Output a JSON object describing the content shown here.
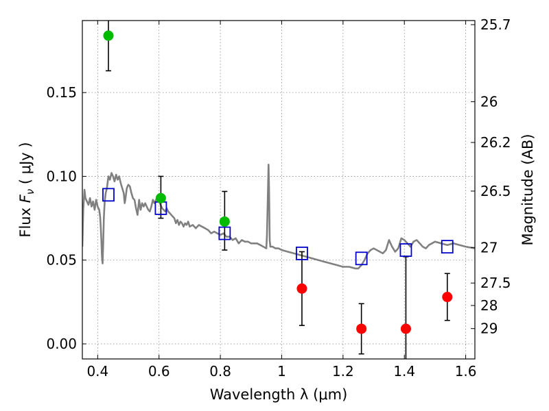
{
  "chart_data": {
    "type": "scatter",
    "title": "",
    "xlabel": "Wavelength  λ (μm)",
    "ylabel": "Flux  F_ν  ( μJy )",
    "ylabel_right": "Magnitude (AB)",
    "xlim": [
      0.35,
      1.63
    ],
    "ylim": [
      -0.009,
      0.193
    ],
    "grid": true,
    "x_ticks": [
      {
        "value": 0.4,
        "label": "0.4"
      },
      {
        "value": 0.6,
        "label": "0.6"
      },
      {
        "value": 0.8,
        "label": "0.8"
      },
      {
        "value": 1.0,
        "label": "1"
      },
      {
        "value": 1.2,
        "label": "1.2"
      },
      {
        "value": 1.4,
        "label": "1.4"
      },
      {
        "value": 1.6,
        "label": "1.6"
      }
    ],
    "y_ticks": [
      {
        "value": 0.0,
        "label": "0.00"
      },
      {
        "value": 0.05,
        "label": "0.05"
      },
      {
        "value": 0.1,
        "label": "0.10"
      },
      {
        "value": 0.15,
        "label": "0.15"
      }
    ],
    "right_ticks": [
      {
        "mag": 25.7,
        "label": "25.7"
      },
      {
        "mag": 26,
        "label": "26"
      },
      {
        "mag": 26.2,
        "label": "26.2"
      },
      {
        "mag": 26.5,
        "label": "26.5"
      },
      {
        "mag": 27,
        "label": "27"
      },
      {
        "mag": 27.5,
        "label": "27.5"
      },
      {
        "mag": 28,
        "label": "28"
      },
      {
        "mag": 29,
        "label": "29"
      }
    ],
    "colors": {
      "detection": "#00bb00",
      "upper": "#ff0000",
      "model_points": "#0000cc",
      "template": "#808080",
      "errorbar": "#000000",
      "grid": "#888888"
    },
    "series": [
      {
        "kind": "detections",
        "points": [
          {
            "x": 0.435,
            "y": 0.184,
            "yerr_low": 0.021,
            "yerr_high": 0.021
          },
          {
            "x": 0.606,
            "y": 0.087,
            "yerr_low": 0.012,
            "yerr_high": 0.013
          },
          {
            "x": 0.814,
            "y": 0.073,
            "yerr_low": 0.017,
            "yerr_high": 0.018
          }
        ]
      },
      {
        "kind": "non_detections",
        "points": [
          {
            "x": 1.066,
            "y": 0.033,
            "yerr_low": 0.022,
            "yerr_high": 0.022
          },
          {
            "x": 1.26,
            "y": 0.009,
            "yerr_low": 0.015,
            "yerr_high": 0.015
          },
          {
            "x": 1.405,
            "y": 0.009,
            "yerr_low": 0.02,
            "yerr_high": 0.043
          },
          {
            "x": 1.54,
            "y": 0.028,
            "yerr_low": 0.014,
            "yerr_high": 0.014
          }
        ]
      },
      {
        "kind": "model_photometry",
        "points": [
          {
            "x": 0.435,
            "y": 0.089
          },
          {
            "x": 0.606,
            "y": 0.081
          },
          {
            "x": 0.814,
            "y": 0.066
          },
          {
            "x": 1.066,
            "y": 0.054
          },
          {
            "x": 1.26,
            "y": 0.051
          },
          {
            "x": 1.405,
            "y": 0.056
          },
          {
            "x": 1.54,
            "y": 0.058
          }
        ]
      },
      {
        "kind": "template_spectrum",
        "points": [
          [
            0.35,
            0.058
          ],
          [
            0.353,
            0.08
          ],
          [
            0.357,
            0.092
          ],
          [
            0.36,
            0.087
          ],
          [
            0.365,
            0.085
          ],
          [
            0.37,
            0.083
          ],
          [
            0.375,
            0.087
          ],
          [
            0.38,
            0.082
          ],
          [
            0.385,
            0.085
          ],
          [
            0.39,
            0.08
          ],
          [
            0.395,
            0.086
          ],
          [
            0.4,
            0.082
          ],
          [
            0.405,
            0.08
          ],
          [
            0.408,
            0.076
          ],
          [
            0.41,
            0.07
          ],
          [
            0.412,
            0.062
          ],
          [
            0.414,
            0.052
          ],
          [
            0.416,
            0.048
          ],
          [
            0.418,
            0.06
          ],
          [
            0.42,
            0.075
          ],
          [
            0.423,
            0.085
          ],
          [
            0.426,
            0.09
          ],
          [
            0.43,
            0.093
          ],
          [
            0.435,
            0.1
          ],
          [
            0.44,
            0.098
          ],
          [
            0.445,
            0.102
          ],
          [
            0.45,
            0.1
          ],
          [
            0.455,
            0.097
          ],
          [
            0.46,
            0.101
          ],
          [
            0.465,
            0.098
          ],
          [
            0.47,
            0.1
          ],
          [
            0.475,
            0.096
          ],
          [
            0.48,
            0.093
          ],
          [
            0.485,
            0.09
          ],
          [
            0.488,
            0.084
          ],
          [
            0.49,
            0.086
          ],
          [
            0.495,
            0.093
          ],
          [
            0.5,
            0.095
          ],
          [
            0.505,
            0.094
          ],
          [
            0.51,
            0.09
          ],
          [
            0.515,
            0.087
          ],
          [
            0.52,
            0.086
          ],
          [
            0.525,
            0.081
          ],
          [
            0.53,
            0.077
          ],
          [
            0.535,
            0.086
          ],
          [
            0.54,
            0.08
          ],
          [
            0.545,
            0.084
          ],
          [
            0.55,
            0.082
          ],
          [
            0.555,
            0.084
          ],
          [
            0.56,
            0.082
          ],
          [
            0.565,
            0.08
          ],
          [
            0.57,
            0.079
          ],
          [
            0.575,
            0.082
          ],
          [
            0.58,
            0.086
          ],
          [
            0.585,
            0.084
          ],
          [
            0.59,
            0.086
          ],
          [
            0.595,
            0.088
          ],
          [
            0.6,
            0.085
          ],
          [
            0.605,
            0.083
          ],
          [
            0.61,
            0.081
          ],
          [
            0.615,
            0.08
          ],
          [
            0.62,
            0.079
          ],
          [
            0.625,
            0.081
          ],
          [
            0.63,
            0.079
          ],
          [
            0.635,
            0.078
          ],
          [
            0.64,
            0.077
          ],
          [
            0.645,
            0.076
          ],
          [
            0.65,
            0.075
          ],
          [
            0.655,
            0.072
          ],
          [
            0.66,
            0.074
          ],
          [
            0.665,
            0.071
          ],
          [
            0.67,
            0.073
          ],
          [
            0.675,
            0.072
          ],
          [
            0.68,
            0.07
          ],
          [
            0.685,
            0.072
          ],
          [
            0.69,
            0.071
          ],
          [
            0.695,
            0.073
          ],
          [
            0.7,
            0.07
          ],
          [
            0.71,
            0.071
          ],
          [
            0.72,
            0.069
          ],
          [
            0.73,
            0.071
          ],
          [
            0.74,
            0.07
          ],
          [
            0.75,
            0.069
          ],
          [
            0.76,
            0.068
          ],
          [
            0.77,
            0.066
          ],
          [
            0.78,
            0.067
          ],
          [
            0.79,
            0.066
          ],
          [
            0.8,
            0.065
          ],
          [
            0.81,
            0.066
          ],
          [
            0.82,
            0.064
          ],
          [
            0.83,
            0.064
          ],
          [
            0.84,
            0.062
          ],
          [
            0.85,
            0.063
          ],
          [
            0.86,
            0.06
          ],
          [
            0.87,
            0.062
          ],
          [
            0.88,
            0.061
          ],
          [
            0.89,
            0.061
          ],
          [
            0.9,
            0.06
          ],
          [
            0.91,
            0.06
          ],
          [
            0.92,
            0.06
          ],
          [
            0.93,
            0.059
          ],
          [
            0.94,
            0.058
          ],
          [
            0.95,
            0.057
          ],
          [
            0.952,
            0.065
          ],
          [
            0.955,
            0.09
          ],
          [
            0.957,
            0.107
          ],
          [
            0.959,
            0.092
          ],
          [
            0.961,
            0.062
          ],
          [
            0.963,
            0.058
          ],
          [
            0.97,
            0.058
          ],
          [
            0.98,
            0.057
          ],
          [
            0.99,
            0.057
          ],
          [
            1.0,
            0.056
          ],
          [
            1.02,
            0.055
          ],
          [
            1.04,
            0.054
          ],
          [
            1.06,
            0.053
          ],
          [
            1.08,
            0.052
          ],
          [
            1.1,
            0.051
          ],
          [
            1.12,
            0.05
          ],
          [
            1.14,
            0.049
          ],
          [
            1.16,
            0.048
          ],
          [
            1.18,
            0.047
          ],
          [
            1.2,
            0.046
          ],
          [
            1.22,
            0.046
          ],
          [
            1.24,
            0.045
          ],
          [
            1.25,
            0.045
          ],
          [
            1.26,
            0.047
          ],
          [
            1.27,
            0.05
          ],
          [
            1.28,
            0.054
          ],
          [
            1.29,
            0.056
          ],
          [
            1.3,
            0.057
          ],
          [
            1.31,
            0.056
          ],
          [
            1.32,
            0.055
          ],
          [
            1.33,
            0.054
          ],
          [
            1.34,
            0.056
          ],
          [
            1.35,
            0.062
          ],
          [
            1.36,
            0.058
          ],
          [
            1.37,
            0.055
          ],
          [
            1.38,
            0.057
          ],
          [
            1.39,
            0.063
          ],
          [
            1.4,
            0.062
          ],
          [
            1.41,
            0.06
          ],
          [
            1.42,
            0.058
          ],
          [
            1.43,
            0.061
          ],
          [
            1.44,
            0.062
          ],
          [
            1.45,
            0.06
          ],
          [
            1.46,
            0.058
          ],
          [
            1.47,
            0.057
          ],
          [
            1.48,
            0.059
          ],
          [
            1.49,
            0.06
          ],
          [
            1.5,
            0.061
          ],
          [
            1.52,
            0.06
          ],
          [
            1.54,
            0.059
          ],
          [
            1.56,
            0.06
          ],
          [
            1.58,
            0.059
          ],
          [
            1.6,
            0.058
          ],
          [
            1.63,
            0.057
          ]
        ]
      }
    ]
  }
}
